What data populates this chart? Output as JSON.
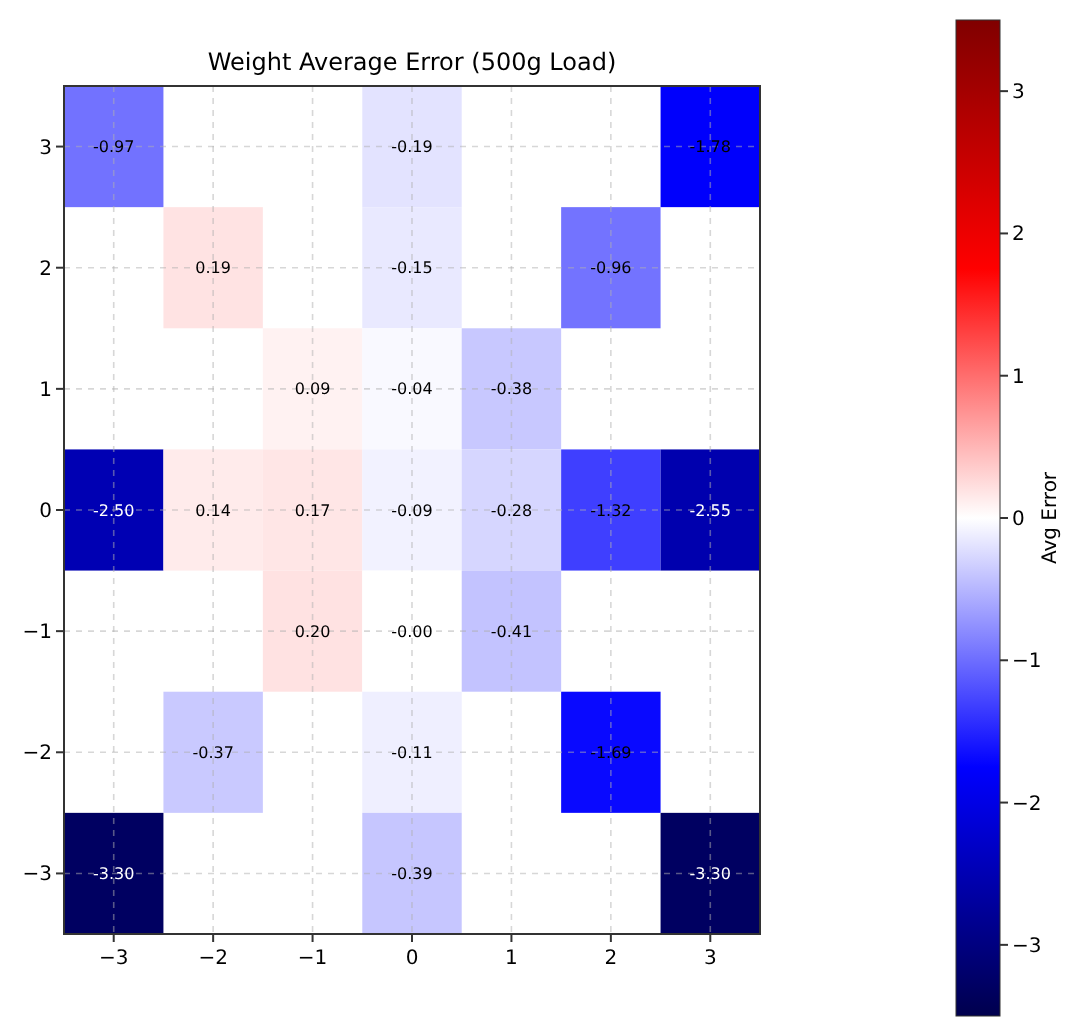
{
  "chart_data": {
    "type": "heatmap",
    "title": "Weight Average Error (500g Load)",
    "clabel": "Avg Error",
    "categories": [
      "−3",
      "−2",
      "−1",
      "0",
      "1",
      "2",
      "3"
    ],
    "y_categories": [
      "3",
      "2",
      "1",
      "0",
      "−1",
      "−2",
      "−3"
    ],
    "cells": [
      [
        -0.97,
        null,
        null,
        -0.19,
        null,
        null,
        -1.78
      ],
      [
        null,
        0.19,
        null,
        -0.15,
        null,
        -0.96,
        null
      ],
      [
        null,
        null,
        0.09,
        -0.04,
        -0.38,
        null,
        null
      ],
      [
        -2.5,
        0.14,
        0.17,
        -0.09,
        -0.28,
        -1.32,
        -2.55
      ],
      [
        null,
        null,
        0.2,
        0,
        -0.41,
        null,
        null
      ],
      [
        null,
        -0.37,
        null,
        -0.11,
        null,
        -1.69,
        null
      ],
      [
        -3.3,
        null,
        null,
        -0.39,
        null,
        null,
        -3.3
      ]
    ],
    "cell_labels": [
      [
        "-0.97",
        null,
        null,
        "-0.19",
        null,
        null,
        "-1.78"
      ],
      [
        null,
        "0.19",
        null,
        "-0.15",
        null,
        "-0.96",
        null
      ],
      [
        null,
        null,
        "0.09",
        "-0.04",
        "-0.38",
        null,
        null
      ],
      [
        "-2.50",
        "0.14",
        "0.17",
        "-0.09",
        "-0.28",
        "-1.32",
        "-2.55"
      ],
      [
        null,
        null,
        "0.20",
        "-0.00",
        "-0.41",
        null,
        null
      ],
      [
        null,
        "-0.37",
        null,
        "-0.11",
        null,
        "-1.69",
        null
      ],
      [
        "-3.30",
        null,
        null,
        "-0.39",
        null,
        null,
        "-3.30"
      ]
    ],
    "clim": [
      -3.5,
      3.5
    ],
    "cticks": [
      {
        "value": -3,
        "label": "−3"
      },
      {
        "value": -2,
        "label": "−2"
      },
      {
        "value": -1,
        "label": "−1"
      },
      0,
      1,
      2,
      3
    ],
    "grid": true
  }
}
